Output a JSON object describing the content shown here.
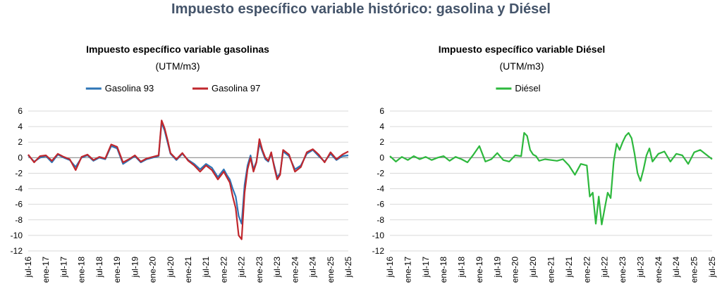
{
  "page": {
    "title": "Impuesto específico variable histórico: gasolina y Diésel"
  },
  "chart_data": [
    {
      "type": "line",
      "title": "Impuesto específico variable gasolinas",
      "subtitle": "(UTM/m3)",
      "ylim": [
        -12,
        6
      ],
      "yticks": [
        6,
        4,
        2,
        0,
        -2,
        -4,
        -6,
        -8,
        -10,
        -12
      ],
      "x_range": [
        "2016-07",
        "2025-07"
      ],
      "x_tick_labels": [
        "jul-16",
        "ene-17",
        "jul-17",
        "ene-18",
        "jul-18",
        "ene-19",
        "jul-19",
        "ene-20",
        "jul-20",
        "ene-21",
        "jul-21",
        "ene-22",
        "jul-22",
        "ene-23",
        "jul-23",
        "ene-24",
        "jul-24",
        "ene-25",
        "jul-25"
      ],
      "grid": true,
      "legend": "top-center",
      "series": [
        {
          "name": "Gasolina 93",
          "color": "#2E75B6",
          "x": [
            "2016-07",
            "2016-09",
            "2016-11",
            "2017-01",
            "2017-03",
            "2017-05",
            "2017-07",
            "2017-09",
            "2017-11",
            "2018-01",
            "2018-03",
            "2018-05",
            "2018-07",
            "2018-09",
            "2018-11",
            "2019-01",
            "2019-03",
            "2019-05",
            "2019-07",
            "2019-09",
            "2019-11",
            "2020-01",
            "2020-03",
            "2020-04",
            "2020-05",
            "2020-06",
            "2020-07",
            "2020-09",
            "2020-11",
            "2021-01",
            "2021-03",
            "2021-05",
            "2021-07",
            "2021-09",
            "2021-11",
            "2022-01",
            "2022-02",
            "2022-03",
            "2022-04",
            "2022-05",
            "2022-06",
            "2022-07",
            "2022-08",
            "2022-09",
            "2022-10",
            "2022-11",
            "2022-12",
            "2023-01",
            "2023-02",
            "2023-03",
            "2023-04",
            "2023-05",
            "2023-06",
            "2023-07",
            "2023-08",
            "2023-09",
            "2023-10",
            "2023-11",
            "2024-01",
            "2024-03",
            "2024-05",
            "2024-07",
            "2024-09",
            "2024-11",
            "2025-01",
            "2025-03",
            "2025-05",
            "2025-07"
          ],
          "y": [
            0.3,
            -0.5,
            0.0,
            0.2,
            -0.6,
            0.4,
            0.0,
            -0.3,
            -1.2,
            0.0,
            0.3,
            -0.4,
            0.0,
            -0.2,
            1.5,
            1.2,
            -0.8,
            -0.3,
            0.2,
            -0.6,
            -0.2,
            0.0,
            0.2,
            4.5,
            3.5,
            2.0,
            0.5,
            -0.3,
            0.5,
            -0.3,
            -0.8,
            -1.5,
            -0.8,
            -1.3,
            -2.5,
            -1.5,
            -2.2,
            -2.8,
            -4.0,
            -5.0,
            -7.5,
            -8.5,
            -3.5,
            -1.0,
            0.3,
            -1.5,
            -0.5,
            1.8,
            0.8,
            -0.2,
            -0.5,
            0.5,
            -1.0,
            -2.5,
            -2.0,
            0.8,
            0.5,
            0.2,
            -1.5,
            -1.0,
            0.5,
            1.0,
            0.2,
            -0.5,
            0.5,
            -0.3,
            0.2,
            0.3
          ]
        },
        {
          "name": "Gasolina 97",
          "color": "#C0272D",
          "x": [
            "2016-07",
            "2016-09",
            "2016-11",
            "2017-01",
            "2017-03",
            "2017-05",
            "2017-07",
            "2017-09",
            "2017-11",
            "2018-01",
            "2018-03",
            "2018-05",
            "2018-07",
            "2018-09",
            "2018-11",
            "2019-01",
            "2019-03",
            "2019-05",
            "2019-07",
            "2019-09",
            "2019-11",
            "2020-01",
            "2020-03",
            "2020-04",
            "2020-05",
            "2020-06",
            "2020-07",
            "2020-09",
            "2020-11",
            "2021-01",
            "2021-03",
            "2021-05",
            "2021-07",
            "2021-09",
            "2021-11",
            "2022-01",
            "2022-02",
            "2022-03",
            "2022-04",
            "2022-05",
            "2022-06",
            "2022-07",
            "2022-08",
            "2022-09",
            "2022-10",
            "2022-11",
            "2022-12",
            "2023-01",
            "2023-02",
            "2023-03",
            "2023-04",
            "2023-05",
            "2023-06",
            "2023-07",
            "2023-08",
            "2023-09",
            "2023-10",
            "2023-11",
            "2024-01",
            "2024-03",
            "2024-05",
            "2024-07",
            "2024-09",
            "2024-11",
            "2025-01",
            "2025-03",
            "2025-05",
            "2025-07"
          ],
          "y": [
            0.4,
            -0.6,
            0.2,
            0.3,
            -0.4,
            0.5,
            0.1,
            -0.2,
            -1.6,
            0.1,
            0.4,
            -0.3,
            0.1,
            -0.1,
            1.7,
            1.4,
            -0.6,
            -0.2,
            0.3,
            -0.5,
            -0.1,
            0.1,
            0.3,
            4.8,
            3.8,
            2.3,
            0.6,
            -0.2,
            0.6,
            -0.4,
            -1.0,
            -1.8,
            -1.0,
            -1.6,
            -2.8,
            -1.8,
            -2.5,
            -3.2,
            -5.0,
            -6.5,
            -10.0,
            -10.5,
            -4.5,
            -1.5,
            0.0,
            -1.8,
            -0.6,
            2.4,
            1.0,
            0.0,
            -0.4,
            0.7,
            -1.2,
            -2.8,
            -2.2,
            1.0,
            0.7,
            0.4,
            -1.8,
            -1.2,
            0.7,
            1.1,
            0.4,
            -0.6,
            0.7,
            -0.2,
            0.4,
            0.8
          ]
        }
      ]
    },
    {
      "type": "line",
      "title": "Impuesto específico variable Diésel",
      "subtitle": "(UTM/m3)",
      "ylim": [
        -12,
        6
      ],
      "yticks": [
        6,
        4,
        2,
        0,
        -2,
        -4,
        -6,
        -8,
        -10,
        -12
      ],
      "x_range": [
        "2016-07",
        "2025-07"
      ],
      "x_tick_labels": [
        "jul-16",
        "ene-17",
        "jul-17",
        "ene-18",
        "jul-18",
        "ene-19",
        "jul-19",
        "ene-20",
        "jul-20",
        "ene-21",
        "jul-21",
        "ene-22",
        "jul-22",
        "ene-23",
        "jul-23",
        "ene-24",
        "jul-24",
        "ene-25",
        "jul-25"
      ],
      "grid": true,
      "legend": "top-center",
      "series": [
        {
          "name": "Diésel",
          "color": "#2DB83D",
          "x": [
            "2016-07",
            "2016-09",
            "2016-11",
            "2017-01",
            "2017-03",
            "2017-05",
            "2017-07",
            "2017-09",
            "2017-11",
            "2018-01",
            "2018-03",
            "2018-05",
            "2018-07",
            "2018-09",
            "2018-11",
            "2019-01",
            "2019-03",
            "2019-05",
            "2019-07",
            "2019-09",
            "2019-11",
            "2020-01",
            "2020-03",
            "2020-04",
            "2020-05",
            "2020-06",
            "2020-07",
            "2020-08",
            "2020-09",
            "2020-11",
            "2021-01",
            "2021-03",
            "2021-05",
            "2021-07",
            "2021-09",
            "2021-11",
            "2022-01",
            "2022-02",
            "2022-03",
            "2022-04",
            "2022-05",
            "2022-06",
            "2022-07",
            "2022-08",
            "2022-09",
            "2022-10",
            "2022-11",
            "2022-12",
            "2023-01",
            "2023-02",
            "2023-03",
            "2023-04",
            "2023-05",
            "2023-06",
            "2023-07",
            "2023-08",
            "2023-09",
            "2023-10",
            "2023-11",
            "2024-01",
            "2024-03",
            "2024-05",
            "2024-07",
            "2024-09",
            "2024-11",
            "2025-01",
            "2025-03",
            "2025-05",
            "2025-07"
          ],
          "y": [
            0.2,
            -0.5,
            0.1,
            -0.3,
            0.2,
            -0.2,
            0.1,
            -0.3,
            0.0,
            0.2,
            -0.4,
            0.1,
            -0.2,
            -0.6,
            0.4,
            1.5,
            -0.5,
            -0.2,
            0.6,
            -0.3,
            -0.5,
            0.3,
            0.2,
            3.2,
            2.8,
            1.0,
            0.4,
            0.2,
            -0.4,
            -0.2,
            -0.3,
            -0.4,
            -0.2,
            -1.0,
            -2.2,
            -0.8,
            -1.0,
            -5.0,
            -4.5,
            -8.5,
            -5.0,
            -8.6,
            -6.5,
            -4.5,
            -5.2,
            -0.5,
            1.8,
            1.0,
            2.0,
            2.8,
            3.2,
            2.5,
            0.5,
            -2.0,
            -3.0,
            -1.5,
            0.3,
            1.2,
            -0.5,
            0.5,
            0.8,
            -0.5,
            0.5,
            0.3,
            -0.8,
            0.7,
            1.0,
            0.4,
            -0.2
          ]
        }
      ]
    }
  ]
}
